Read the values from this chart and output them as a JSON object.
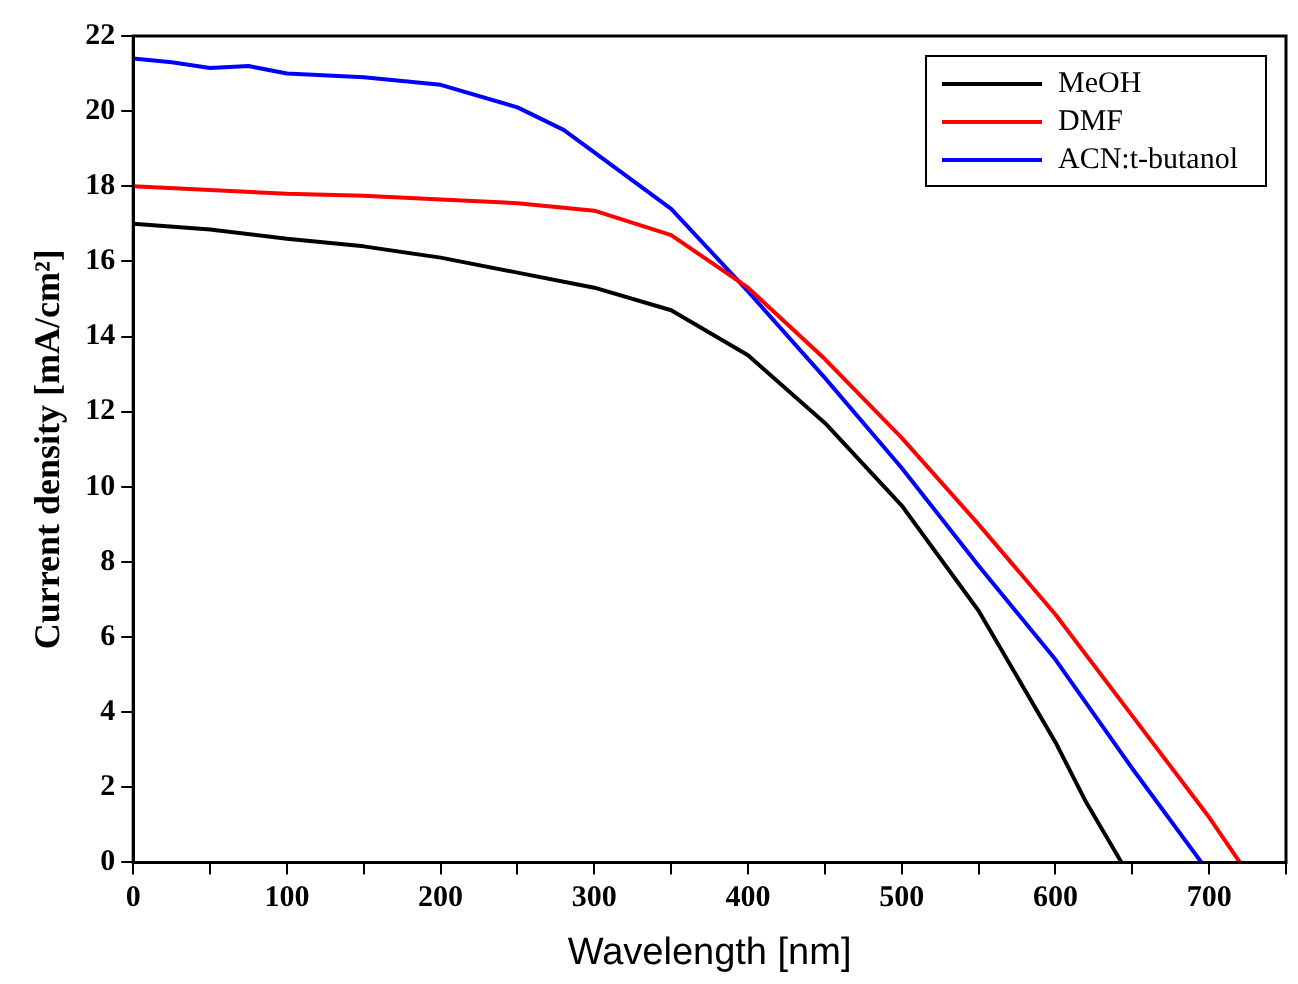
{
  "chart_data": {
    "type": "line",
    "xlabel": "Wavelength [nm]",
    "ylabel": "Current density [mA/cm²]",
    "xlim": [
      0,
      750
    ],
    "xticks": [
      0,
      {
        "value": 50,
        "label": null
      },
      100,
      {
        "value": 150,
        "label": null
      },
      200,
      {
        "value": 250,
        "label": null
      },
      300,
      {
        "value": 350,
        "label": null
      },
      400,
      {
        "value": 450,
        "label": null
      },
      500,
      {
        "value": 550,
        "label": null
      },
      600,
      {
        "value": 650,
        "label": null
      },
      700,
      {
        "value": 750,
        "label": null
      }
    ],
    "ylim": [
      0,
      22
    ],
    "yticks": [
      0,
      2,
      4,
      6,
      8,
      10,
      12,
      14,
      16,
      18,
      20,
      22
    ],
    "legend": "top right",
    "grid": false,
    "marker": "none",
    "line_style": "solid",
    "series": [
      {
        "name": "MeOH",
        "color": "#000000",
        "x": [
          0,
          50,
          100,
          150,
          200,
          250,
          300,
          350,
          400,
          450,
          500,
          550,
          600,
          620,
          643
        ],
        "values": [
          17.0,
          16.85,
          16.6,
          16.4,
          16.1,
          15.7,
          15.3,
          14.7,
          13.5,
          11.7,
          9.5,
          6.7,
          3.2,
          1.6,
          0
        ]
      },
      {
        "name": "DMF",
        "color": "#ff0000",
        "x": [
          0,
          50,
          100,
          150,
          200,
          250,
          300,
          350,
          400,
          450,
          500,
          550,
          600,
          650,
          700,
          720
        ],
        "values": [
          18.0,
          17.9,
          17.8,
          17.75,
          17.65,
          17.55,
          17.35,
          16.7,
          15.3,
          13.4,
          11.3,
          9.0,
          6.6,
          3.9,
          1.2,
          0
        ]
      },
      {
        "name": "ACN:t-butanol",
        "color": "#0000ff",
        "x": [
          0,
          25,
          50,
          75,
          100,
          150,
          200,
          250,
          280,
          300,
          350,
          400,
          450,
          500,
          550,
          600,
          650,
          695
        ],
        "values": [
          21.4,
          21.3,
          21.15,
          21.2,
          21.0,
          20.9,
          20.7,
          20.1,
          19.5,
          18.9,
          17.4,
          15.2,
          12.9,
          10.5,
          7.9,
          5.4,
          2.5,
          0
        ]
      }
    ]
  }
}
